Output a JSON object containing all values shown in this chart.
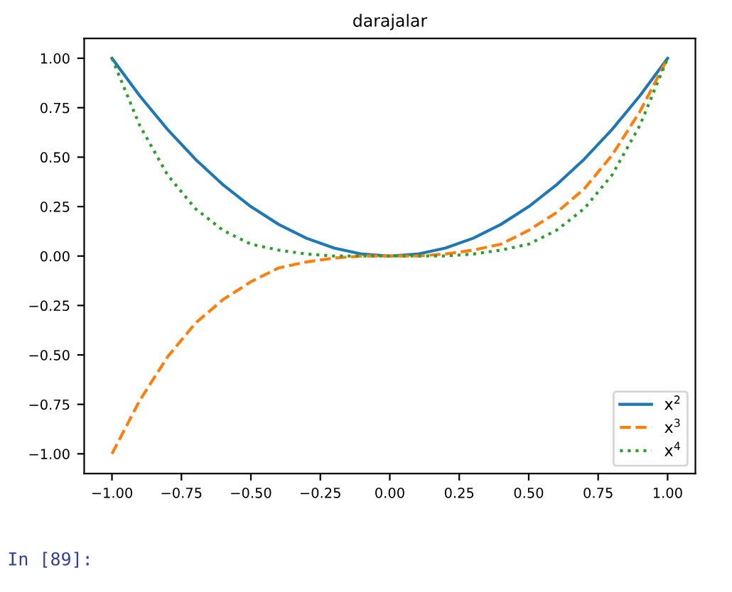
{
  "chart_data": {
    "type": "line",
    "title": "darajalar",
    "x": [
      -1,
      -0.9,
      -0.8,
      -0.7,
      -0.6,
      -0.5,
      -0.4,
      -0.3,
      -0.2,
      -0.1,
      0,
      0.1,
      0.2,
      0.3,
      0.4,
      0.5,
      0.6,
      0.7,
      0.8,
      0.9,
      1
    ],
    "series": [
      {
        "name": "x$^{2}$",
        "color": "#1f77b4",
        "line_style": "solid",
        "values": [
          1,
          0.81,
          0.64,
          0.49,
          0.36,
          0.25,
          0.16,
          0.09,
          0.04,
          0.01,
          0,
          0.01,
          0.04,
          0.09,
          0.16,
          0.25,
          0.36,
          0.49,
          0.64,
          0.81,
          1
        ]
      },
      {
        "name": "x$^{3}$",
        "color": "#ff7f0e",
        "line_style": "dashed",
        "values": [
          -1,
          -0.73,
          -0.51,
          -0.34,
          -0.22,
          -0.13,
          -0.06,
          -0.03,
          -0.01,
          0,
          0,
          0,
          0.01,
          0.03,
          0.06,
          0.13,
          0.22,
          0.34,
          0.51,
          0.73,
          1
        ]
      },
      {
        "name": "x$^{4}$",
        "color": "#2ca02c",
        "line_style": "dotted",
        "values": [
          1,
          0.66,
          0.41,
          0.24,
          0.13,
          0.06,
          0.03,
          0.01,
          0,
          0,
          0,
          0,
          0,
          0.01,
          0.03,
          0.06,
          0.13,
          0.24,
          0.41,
          0.66,
          1
        ]
      }
    ],
    "xlim": [
      -1.1,
      1.1
    ],
    "ylim": [
      -1.1,
      1.1
    ],
    "xticks": [
      {
        "value": -1,
        "label": "−1.00"
      },
      {
        "value": -0.75,
        "label": "−0.75"
      },
      {
        "value": -0.5,
        "label": "−0.50"
      },
      {
        "value": -0.25,
        "label": "−0.25"
      },
      {
        "value": 0,
        "label": "0.00"
      },
      {
        "value": 0.25,
        "label": "0.25"
      },
      {
        "value": 0.5,
        "label": "0.50"
      },
      {
        "value": 0.75,
        "label": "0.75"
      },
      {
        "value": 1,
        "label": "1.00"
      }
    ],
    "yticks": [
      {
        "value": -1,
        "label": "−1.00"
      },
      {
        "value": -0.75,
        "label": "−0.75"
      },
      {
        "value": -0.5,
        "label": "−0.50"
      },
      {
        "value": -0.25,
        "label": "−0.25"
      },
      {
        "value": 0,
        "label": "0.00"
      },
      {
        "value": 0.25,
        "label": "0.25"
      },
      {
        "value": 0.5,
        "label": "0.50"
      },
      {
        "value": 0.75,
        "label": "0.75"
      },
      {
        "value": 1,
        "label": "1.00"
      }
    ],
    "legend": "bottom right",
    "grid": false,
    "annotations": [
      "In [89]:"
    ]
  }
}
